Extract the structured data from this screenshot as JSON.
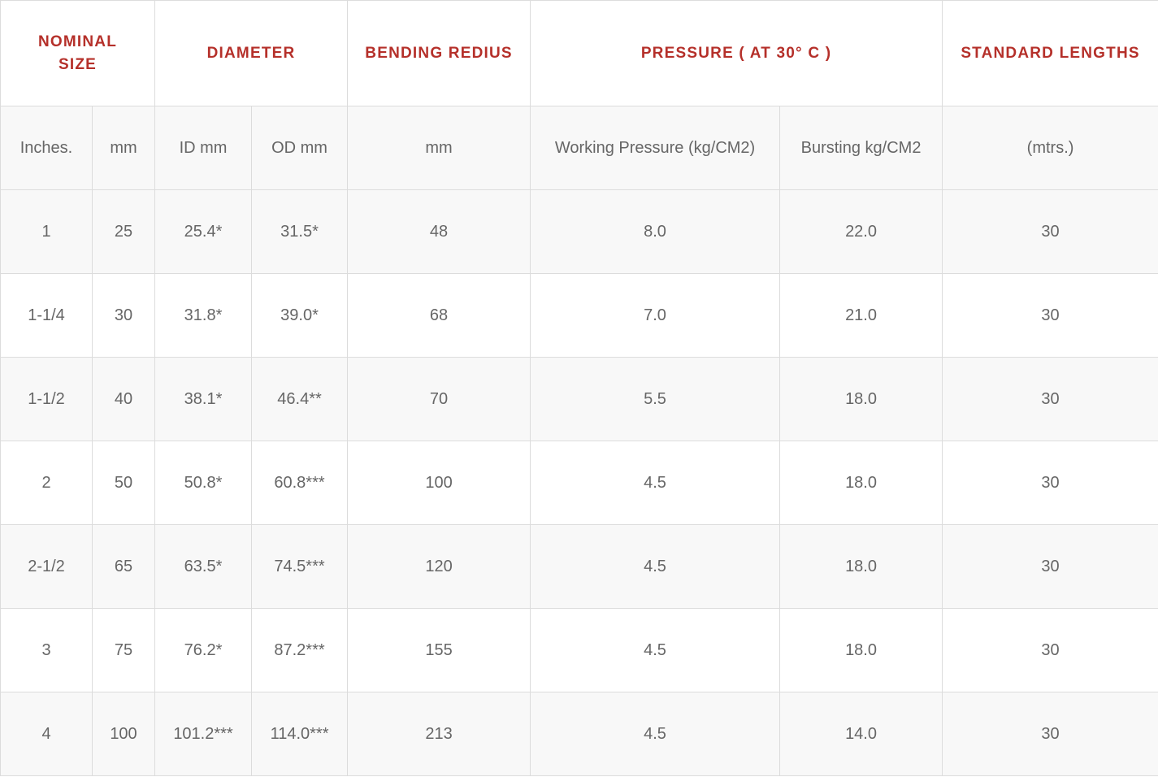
{
  "table": {
    "group_headers": {
      "nominal_size": "NOMINAL SIZE",
      "diameter": "DIAMETER",
      "bending_radius": "BENDING REDIUS",
      "pressure": "PRESSURE ( AT 30° C )",
      "standard_lengths": "STANDARD LENGTHS"
    },
    "sub_headers": {
      "inches": "Inches.",
      "mm": "mm",
      "id_mm": "ID mm",
      "od_mm": "OD mm",
      "bend_mm": "mm",
      "working_pressure": "Working Pressure (kg/CM2)",
      "bursting": "Bursting kg/CM2",
      "length_unit": "(mtrs.)"
    },
    "rows": [
      {
        "inches": "1",
        "mm": "25",
        "id": "25.4*",
        "od": "31.5*",
        "bend": "48",
        "working": "8.0",
        "bursting": "22.0",
        "length": "30"
      },
      {
        "inches": "1-1/4",
        "mm": "30",
        "id": "31.8*",
        "od": "39.0*",
        "bend": "68",
        "working": "7.0",
        "bursting": "21.0",
        "length": "30"
      },
      {
        "inches": "1-1/2",
        "mm": "40",
        "id": "38.1*",
        "od": "46.4**",
        "bend": "70",
        "working": "5.5",
        "bursting": "18.0",
        "length": "30"
      },
      {
        "inches": "2",
        "mm": "50",
        "id": "50.8*",
        "od": "60.8***",
        "bend": "100",
        "working": "4.5",
        "bursting": "18.0",
        "length": "30"
      },
      {
        "inches": "2-1/2",
        "mm": "65",
        "id": "63.5*",
        "od": "74.5***",
        "bend": "120",
        "working": "4.5",
        "bursting": "18.0",
        "length": "30"
      },
      {
        "inches": "3",
        "mm": "75",
        "id": "76.2*",
        "od": "87.2***",
        "bend": "155",
        "working": "4.5",
        "bursting": "18.0",
        "length": "30"
      },
      {
        "inches": "4",
        "mm": "100",
        "id": "101.2***",
        "od": "114.0***",
        "bend": "213",
        "working": "4.5",
        "bursting": "14.0",
        "length": "30"
      }
    ],
    "colors": {
      "header_text": "#b5302a",
      "body_text": "#666666",
      "border": "#dcdcdc",
      "stripe": "#f8f8f8"
    }
  }
}
